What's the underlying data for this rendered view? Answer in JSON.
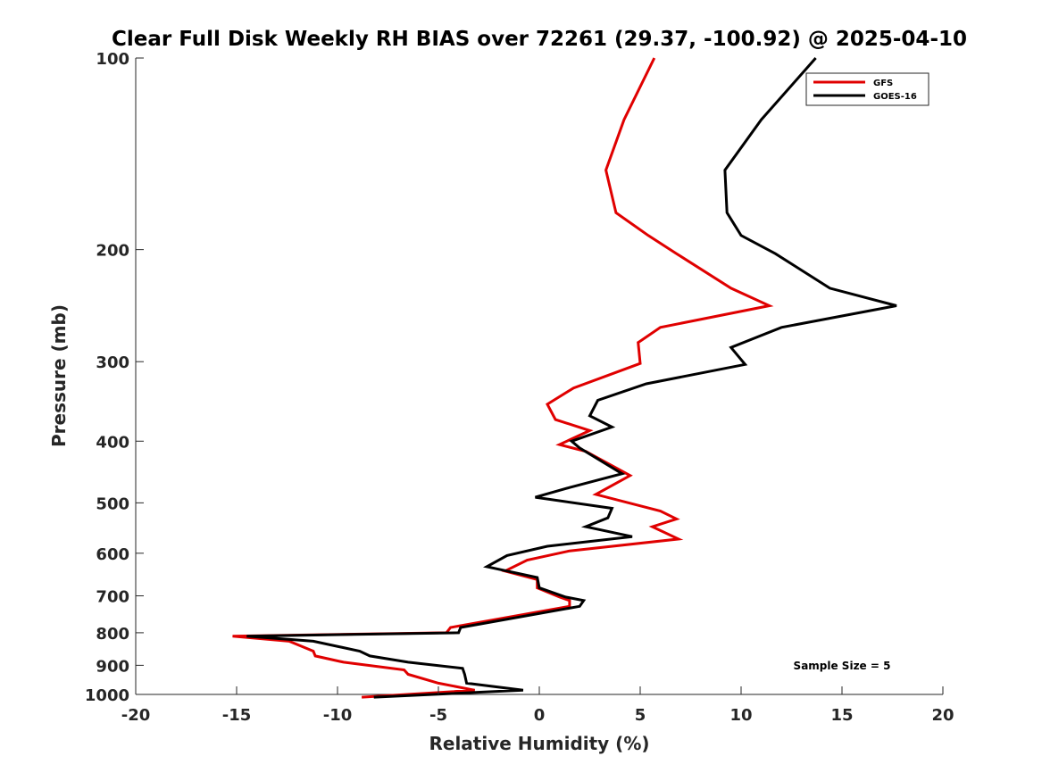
{
  "chart_data": {
    "type": "line",
    "title": "Clear Full Disk Weekly RH BIAS over 72261 (29.37, -100.92) @ 2025-04-10",
    "xlabel": "Relative Humidity (%)",
    "ylabel": "Pressure (mb)",
    "xlim": [
      -20,
      20
    ],
    "ylim": [
      100,
      1000
    ],
    "y_scale": "log",
    "y_reversed": true,
    "x_ticks": [
      -20,
      -15,
      -10,
      -5,
      0,
      5,
      10,
      15,
      20
    ],
    "y_ticks": [
      100,
      200,
      300,
      400,
      500,
      600,
      700,
      800,
      900,
      1000
    ],
    "grid": false,
    "legend_position": "top-right",
    "annotation": "Sample Size = 5",
    "series": [
      {
        "name": "GFS",
        "color": "#e00000",
        "points": [
          [
            5.7,
            100
          ],
          [
            4.2,
            125
          ],
          [
            3.3,
            150
          ],
          [
            3.8,
            175
          ],
          [
            5.4,
            190
          ],
          [
            6.8,
            203
          ],
          [
            9.5,
            230
          ],
          [
            11.4,
            245
          ],
          [
            6.0,
            265
          ],
          [
            4.9,
            280
          ],
          [
            5.0,
            302
          ],
          [
            1.7,
            330
          ],
          [
            0.4,
            350
          ],
          [
            0.8,
            370
          ],
          [
            2.5,
            385
          ],
          [
            1.0,
            405
          ],
          [
            2.3,
            415
          ],
          [
            4.5,
            453
          ],
          [
            2.8,
            485
          ],
          [
            6.0,
            515
          ],
          [
            6.8,
            530
          ],
          [
            5.6,
            545
          ],
          [
            6.9,
            570
          ],
          [
            1.5,
            595
          ],
          [
            -0.6,
            615
          ],
          [
            -1.7,
            640
          ],
          [
            -0.1,
            660
          ],
          [
            -0.1,
            680
          ],
          [
            1.0,
            703
          ],
          [
            1.5,
            712
          ],
          [
            1.5,
            727
          ],
          [
            -4.4,
            785
          ],
          [
            -4.6,
            800
          ],
          [
            -15.2,
            810
          ],
          [
            -12.4,
            825
          ],
          [
            -11.2,
            855
          ],
          [
            -11.1,
            870
          ],
          [
            -9.7,
            890
          ],
          [
            -6.7,
            915
          ],
          [
            -6.5,
            930
          ],
          [
            -5.0,
            960
          ],
          [
            -3.2,
            985
          ],
          [
            -8.8,
            1010
          ]
        ]
      },
      {
        "name": "GOES-16",
        "color": "#000000",
        "points": [
          [
            13.7,
            100
          ],
          [
            11.0,
            125
          ],
          [
            9.2,
            150
          ],
          [
            9.3,
            175
          ],
          [
            10.0,
            190
          ],
          [
            11.7,
            203
          ],
          [
            14.4,
            230
          ],
          [
            17.7,
            245
          ],
          [
            12.0,
            265
          ],
          [
            9.5,
            285
          ],
          [
            10.2,
            303
          ],
          [
            5.3,
            325
          ],
          [
            2.9,
            345
          ],
          [
            2.5,
            365
          ],
          [
            3.6,
            380
          ],
          [
            1.6,
            400
          ],
          [
            2.0,
            410
          ],
          [
            4.1,
            450
          ],
          [
            1.5,
            473
          ],
          [
            -0.2,
            490
          ],
          [
            3.6,
            510
          ],
          [
            3.4,
            528
          ],
          [
            2.3,
            545
          ],
          [
            4.6,
            565
          ],
          [
            0.4,
            585
          ],
          [
            -1.6,
            605
          ],
          [
            -2.6,
            630
          ],
          [
            -0.1,
            655
          ],
          [
            0.0,
            680
          ],
          [
            1.3,
            703
          ],
          [
            2.2,
            712
          ],
          [
            2.0,
            727
          ],
          [
            -3.9,
            785
          ],
          [
            -4.0,
            800
          ],
          [
            -14.5,
            810
          ],
          [
            -11.2,
            825
          ],
          [
            -8.9,
            855
          ],
          [
            -8.4,
            870
          ],
          [
            -6.5,
            890
          ],
          [
            -3.8,
            910
          ],
          [
            -3.7,
            930
          ],
          [
            -3.6,
            960
          ],
          [
            -0.8,
            985
          ],
          [
            -8.2,
            1010
          ]
        ]
      }
    ]
  }
}
